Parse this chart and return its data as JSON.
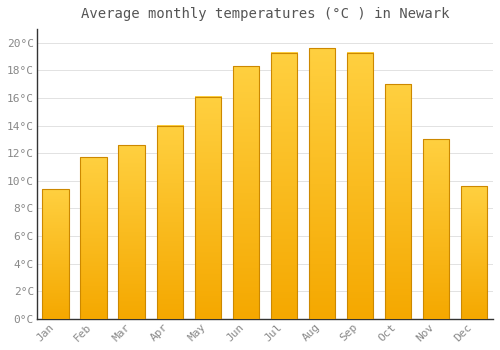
{
  "title": "Average monthly temperatures (°C ) in Newark",
  "months": [
    "Jan",
    "Feb",
    "Mar",
    "Apr",
    "May",
    "Jun",
    "Jul",
    "Aug",
    "Sep",
    "Oct",
    "Nov",
    "Dec"
  ],
  "values": [
    9.4,
    11.7,
    12.6,
    14.0,
    16.1,
    18.3,
    19.3,
    19.6,
    19.3,
    17.0,
    13.0,
    9.6
  ],
  "bar_color_bottom": "#F5A800",
  "bar_color_top": "#FFD040",
  "bar_edge_color": "#CC8800",
  "background_color": "#FFFFFF",
  "grid_color": "#DDDDDD",
  "tick_label_color": "#888888",
  "title_color": "#555555",
  "spine_color": "#333333",
  "ylim": [
    0,
    21
  ],
  "yticks": [
    0,
    2,
    4,
    6,
    8,
    10,
    12,
    14,
    16,
    18,
    20
  ],
  "ytick_labels": [
    "0°C",
    "2°C",
    "4°C",
    "6°C",
    "8°C",
    "10°C",
    "12°C",
    "14°C",
    "16°C",
    "18°C",
    "20°C"
  ],
  "title_fontsize": 10,
  "tick_fontsize": 8,
  "font_family": "monospace"
}
